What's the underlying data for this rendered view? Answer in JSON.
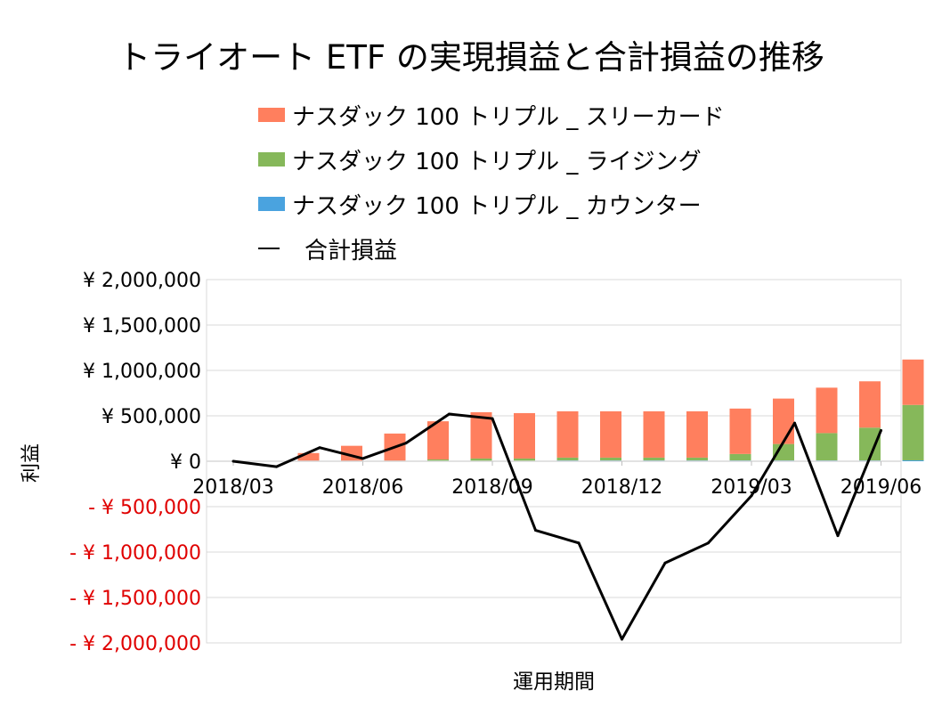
{
  "chart_data": {
    "type": "bar",
    "stacked": true,
    "title": "トライオート ETF の実現損益と合計損益の推移",
    "xlabel": "運用期間",
    "ylabel": "利益",
    "ylim": [
      -2000000,
      2000000
    ],
    "yticks": [
      2000000,
      1500000,
      1000000,
      500000,
      0,
      -500000,
      -1000000,
      -1500000,
      -2000000
    ],
    "ytick_labels": [
      "¥ 2,000,000",
      "¥ 1,500,000",
      "¥ 1,000,000",
      "¥ 500,000",
      "¥ 0",
      "- ¥ 500,000",
      "- ¥ 1,000,000",
      "- ¥ 1,500,000",
      "- ¥ 2,000,000"
    ],
    "xtick_labels": [
      "2018/03",
      "2018/06",
      "2018/09",
      "2018/12",
      "2019/03",
      "2019/06"
    ],
    "categories": [
      "2018/03",
      "2018/04",
      "2018/05",
      "2018/06",
      "2018/07",
      "2018/08",
      "2018/09",
      "2018/10",
      "2018/11",
      "2018/12",
      "2019/01",
      "2019/02",
      "2019/03",
      "2019/04",
      "2019/05",
      "2019/06"
    ],
    "series": [
      {
        "name": "ナスダック 100 トリプル _ カウンター",
        "kind": "bar",
        "color": "#4aa3df",
        "values": [
          0,
          0,
          0,
          0,
          0,
          0,
          0,
          10000,
          10000,
          10000,
          10000,
          10000,
          10000,
          10000,
          10000,
          10000
        ]
      },
      {
        "name": "ナスダック 100 トリプル _ ライジング",
        "kind": "bar",
        "color": "#86b85a",
        "values": [
          0,
          0,
          0,
          5000,
          20000,
          30000,
          30000,
          30000,
          30000,
          30000,
          30000,
          70000,
          180000,
          300000,
          360000,
          610000
        ]
      },
      {
        "name": "ナスダック 100 トリプル _ スリーカード",
        "kind": "bar",
        "color": "#ff7f5e",
        "values": [
          0,
          90000,
          170000,
          300000,
          420000,
          510000,
          500000,
          510000,
          510000,
          510000,
          510000,
          500000,
          500000,
          500000,
          510000,
          500000
        ]
      },
      {
        "name": "合計損益",
        "kind": "line",
        "color": "#000000",
        "values": [
          0,
          -60000,
          150000,
          30000,
          200000,
          520000,
          470000,
          -760000,
          -900000,
          -1960000,
          -1120000,
          -900000,
          -380000,
          420000,
          -820000,
          340000
        ]
      }
    ]
  }
}
